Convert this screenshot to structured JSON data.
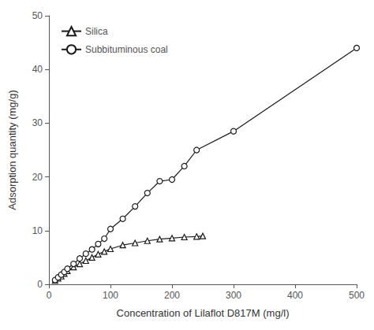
{
  "chart_data": {
    "type": "line",
    "xlabel": "Concentration of Lilaflot D817M (mg/l)",
    "ylabel": "Adsorption quantity (mg/g)",
    "xlim": [
      0,
      500
    ],
    "ylim": [
      0,
      50
    ],
    "xticks": [
      0,
      100,
      200,
      300,
      400,
      500
    ],
    "yticks": [
      0,
      10,
      20,
      30,
      40,
      50
    ],
    "grid": false,
    "legend": "upper left",
    "series": [
      {
        "name": "Silica",
        "color": "#1a1a1a",
        "marker": "triangle",
        "x": [
          10,
          15,
          20,
          25,
          30,
          40,
          50,
          60,
          70,
          80,
          90,
          100,
          120,
          140,
          160,
          180,
          200,
          220,
          240,
          250
        ],
        "values": [
          0.7,
          1.1,
          1.5,
          2.0,
          2.5,
          3.2,
          3.8,
          4.4,
          5.0,
          5.6,
          6.1,
          6.6,
          7.3,
          7.7,
          8.1,
          8.4,
          8.6,
          8.8,
          8.9,
          9.0
        ]
      },
      {
        "name": "Subbituminous coal",
        "color": "#1a1a1a",
        "marker": "circle",
        "x": [
          10,
          15,
          20,
          25,
          30,
          40,
          50,
          60,
          70,
          80,
          90,
          100,
          120,
          140,
          160,
          180,
          200,
          220,
          240,
          300,
          500
        ],
        "values": [
          0.8,
          1.3,
          1.8,
          2.3,
          2.9,
          3.8,
          4.8,
          5.7,
          6.5,
          7.5,
          8.5,
          10.3,
          12.2,
          14.5,
          17.0,
          19.2,
          19.5,
          22.0,
          25.0,
          28.5,
          44.0
        ]
      }
    ]
  }
}
